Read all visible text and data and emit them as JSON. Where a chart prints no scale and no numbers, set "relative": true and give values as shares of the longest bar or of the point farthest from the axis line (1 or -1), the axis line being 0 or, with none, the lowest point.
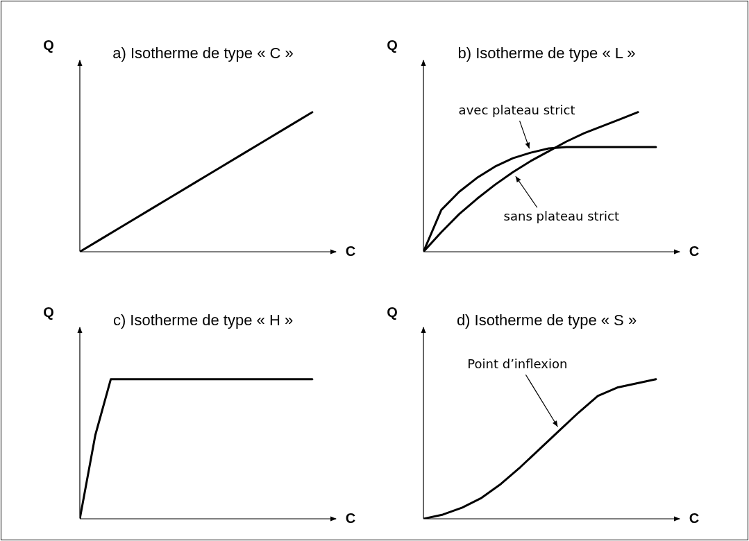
{
  "chart_data": [
    {
      "type": "line",
      "title": "a) Isotherme de type « C »",
      "xlabel": "C",
      "ylabel": "Q",
      "relative": true,
      "marker": "none",
      "legend": false,
      "categories": [
        null,
        null,
        null,
        null,
        null,
        null,
        null,
        null,
        null,
        null,
        null
      ],
      "series": [
        {
          "color": "#000000",
          "values": [
            0,
            0.1,
            0.2,
            0.3,
            0.4,
            0.5,
            0.6,
            0.7,
            0.8,
            0.9,
            1
          ]
        }
      ]
    },
    {
      "type": "line",
      "title": "b) Isotherme de type « L »",
      "xlabel": "C",
      "ylabel": "Q",
      "relative": true,
      "marker": "none",
      "legend": false,
      "categories": [
        null,
        null,
        null,
        null,
        null,
        null,
        null,
        null,
        null,
        null,
        null,
        null,
        null,
        null
      ],
      "series": [
        {
          "name": "avec plateau strict",
          "color": "#000000",
          "values": [
            0,
            0.3,
            0.43,
            0.53,
            0.61,
            0.67,
            0.71,
            0.74,
            0.75,
            0.75,
            0.75,
            0.75,
            0.75,
            0.75
          ]
        },
        {
          "name": "sans plateau strict",
          "color": "#000000",
          "values": [
            0,
            0.14,
            0.27,
            0.38,
            0.48,
            0.57,
            0.65,
            0.72,
            0.79,
            0.85,
            0.9,
            0.95,
            1,
            null
          ]
        }
      ]
    },
    {
      "type": "line",
      "title": "c) Isotherme de type « H »",
      "xlabel": "C",
      "ylabel": "Q",
      "relative": true,
      "marker": "none",
      "legend": false,
      "categories": [
        null,
        null,
        null,
        null,
        null,
        null,
        null,
        null,
        null,
        null,
        null,
        null,
        null,
        null,
        null,
        null
      ],
      "series": [
        {
          "color": "#000000",
          "values": [
            0,
            0.6,
            1,
            1,
            1,
            1,
            1,
            1,
            1,
            1,
            1,
            1,
            1,
            1,
            1,
            1
          ]
        }
      ]
    },
    {
      "type": "line",
      "title": "d) Isotherme de type « S »",
      "xlabel": "C",
      "ylabel": "Q",
      "relative": true,
      "marker": "none",
      "legend": false,
      "annotations": [
        "Point d’inflexion"
      ],
      "categories": [
        null,
        null,
        null,
        null,
        null,
        null,
        null,
        null,
        null,
        null,
        null,
        null,
        null
      ],
      "series": [
        {
          "color": "#000000",
          "values": [
            0,
            0.03,
            0.08,
            0.15,
            0.25,
            0.37,
            0.5,
            0.63,
            0.76,
            0.88,
            0.94,
            0.97,
            1
          ]
        }
      ]
    }
  ]
}
